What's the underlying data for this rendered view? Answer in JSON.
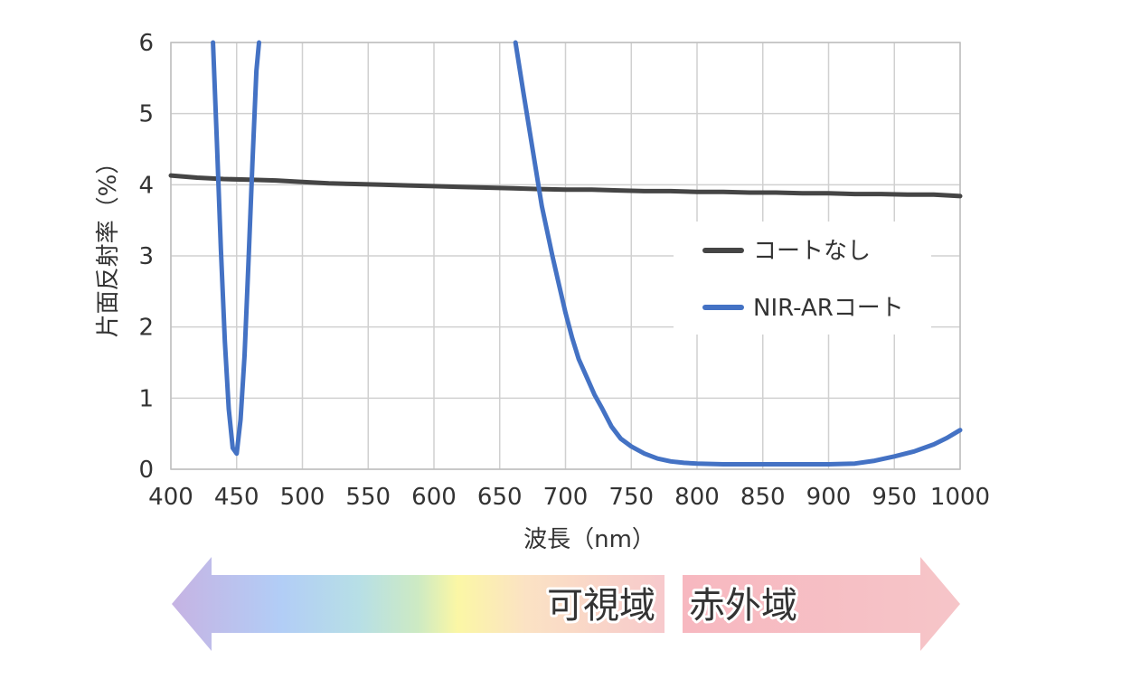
{
  "chart_data": {
    "type": "line",
    "xlabel": "波長（nm）",
    "ylabel": "片面反射率（%）",
    "xlim": [
      400,
      1000
    ],
    "ylim": [
      0,
      6
    ],
    "xticks": [
      400,
      450,
      500,
      550,
      600,
      650,
      700,
      750,
      800,
      850,
      900,
      950,
      1000
    ],
    "yticks": [
      0,
      1,
      2,
      3,
      4,
      5,
      6
    ],
    "grid": true,
    "legend_position": "right",
    "series": [
      {
        "name": "コートなし",
        "color": "#454545",
        "x": [
          400,
          420,
          440,
          460,
          480,
          500,
          520,
          540,
          560,
          580,
          600,
          620,
          640,
          660,
          680,
          700,
          720,
          740,
          760,
          780,
          800,
          820,
          840,
          860,
          880,
          900,
          920,
          940,
          960,
          980,
          1000
        ],
        "y": [
          4.13,
          4.1,
          4.08,
          4.07,
          4.06,
          4.04,
          4.02,
          4.01,
          4.0,
          3.99,
          3.98,
          3.97,
          3.96,
          3.95,
          3.94,
          3.93,
          3.93,
          3.92,
          3.91,
          3.91,
          3.9,
          3.9,
          3.89,
          3.89,
          3.88,
          3.88,
          3.87,
          3.87,
          3.86,
          3.86,
          3.84
        ]
      },
      {
        "name": "NIR-ARコート",
        "color": "#4472C4",
        "x": [
          432,
          435,
          438,
          441,
          444,
          447,
          450,
          453,
          456,
          459,
          462,
          465,
          467,
          662,
          668,
          675,
          682,
          690,
          695,
          700,
          705,
          710,
          716,
          722,
          728,
          735,
          742,
          750,
          760,
          770,
          780,
          790,
          800,
          820,
          840,
          860,
          880,
          900,
          920,
          935,
          950,
          965,
          980,
          990,
          1000
        ],
        "y": [
          6.0,
          4.6,
          3.1,
          1.8,
          0.85,
          0.3,
          0.22,
          0.7,
          1.6,
          2.9,
          4.3,
          5.6,
          6.0,
          6.0,
          5.3,
          4.5,
          3.7,
          3.0,
          2.6,
          2.2,
          1.85,
          1.55,
          1.3,
          1.05,
          0.85,
          0.6,
          0.43,
          0.32,
          0.22,
          0.15,
          0.11,
          0.09,
          0.08,
          0.07,
          0.07,
          0.07,
          0.07,
          0.07,
          0.08,
          0.12,
          0.18,
          0.25,
          0.35,
          0.44,
          0.55
        ]
      }
    ],
    "annotations": {
      "visible_band_label": "可視域",
      "infrared_band_label": "赤外域"
    }
  }
}
